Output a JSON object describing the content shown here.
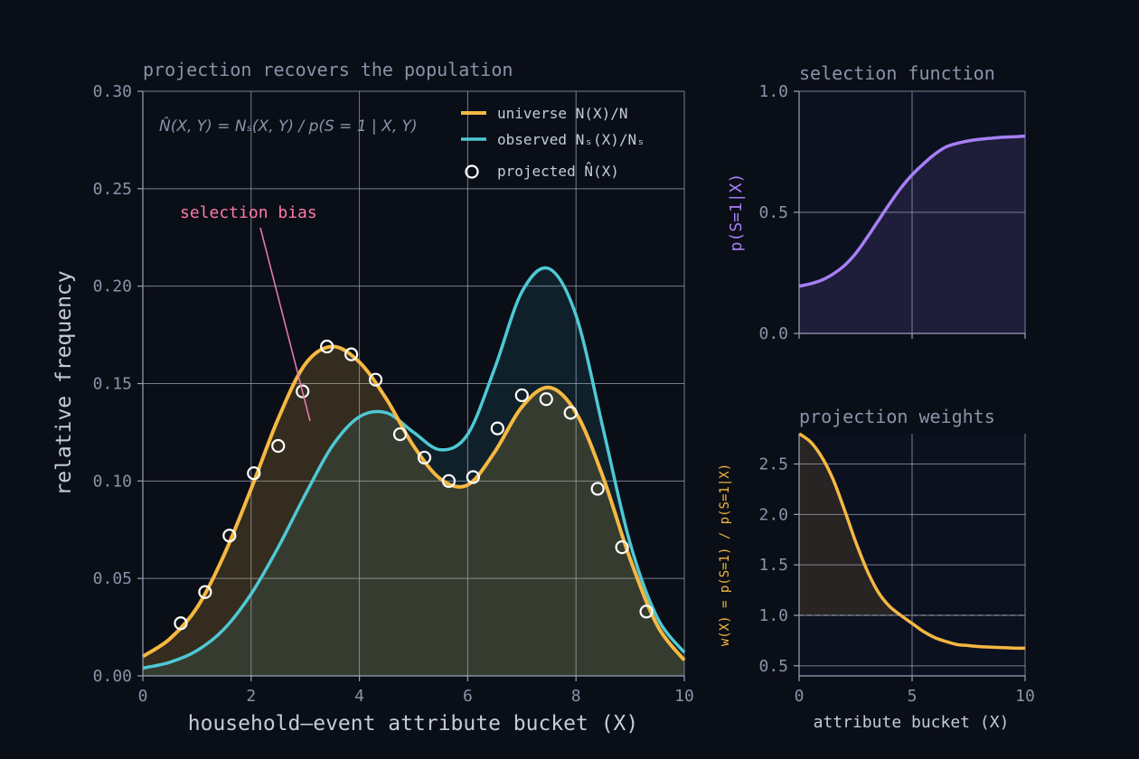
{
  "chart_data": [
    {
      "type": "line",
      "title": "projection recovers the population",
      "xlabel": "household–event attribute bucket  (X)",
      "ylabel": "relative frequency",
      "xlim": [
        0,
        10
      ],
      "ylim": [
        0,
        0.3
      ],
      "xticks": [
        "0",
        "2",
        "4",
        "6",
        "8",
        "10"
      ],
      "yticks": [
        "0.00",
        "0.05",
        "0.10",
        "0.15",
        "0.20",
        "0.25",
        "0.30"
      ],
      "grid": true,
      "legend_position": "top-right",
      "formula_annotation": "N̂(X, Y) = N_S(X, Y) / p(S = 1 | X, Y)",
      "annotation": {
        "text": "selection bias",
        "points_to_x": 3.1
      },
      "series": [
        {
          "name": "universe  N(X)/N",
          "kind": "line",
          "color": "#f5b841",
          "x": [
            0,
            0.5,
            1,
            1.5,
            2,
            2.5,
            3,
            3.5,
            4,
            4.5,
            5,
            5.5,
            6,
            6.5,
            7,
            7.5,
            8,
            8.5,
            9,
            9.5,
            10
          ],
          "y": [
            0.01,
            0.019,
            0.035,
            0.062,
            0.096,
            0.132,
            0.16,
            0.169,
            0.161,
            0.142,
            0.118,
            0.101,
            0.098,
            0.115,
            0.138,
            0.148,
            0.135,
            0.102,
            0.06,
            0.026,
            0.008
          ]
        },
        {
          "name": "observed  Nₛ(X)/Nₛ",
          "kind": "line",
          "color": "#4ec9d4",
          "x": [
            0,
            0.5,
            1,
            1.5,
            2,
            2.5,
            3,
            3.5,
            4,
            4.5,
            5,
            5.5,
            6,
            6.5,
            7,
            7.5,
            8,
            8.5,
            9,
            9.5,
            10
          ],
          "y": [
            0.004,
            0.007,
            0.013,
            0.024,
            0.042,
            0.066,
            0.093,
            0.118,
            0.133,
            0.135,
            0.125,
            0.116,
            0.124,
            0.158,
            0.197,
            0.209,
            0.185,
            0.127,
            0.068,
            0.03,
            0.012
          ]
        },
        {
          "name": "projected  N̂(X)",
          "kind": "scatter",
          "color": "#ffffff",
          "x": [
            0.7,
            1.15,
            1.6,
            2.05,
            2.5,
            2.95,
            3.4,
            3.85,
            4.3,
            4.75,
            5.2,
            5.65,
            6.1,
            6.55,
            7.0,
            7.45,
            7.9,
            8.4,
            8.85,
            9.3
          ],
          "y": [
            0.027,
            0.043,
            0.072,
            0.104,
            0.118,
            0.146,
            0.169,
            0.165,
            0.152,
            0.124,
            0.112,
            0.1,
            0.102,
            0.127,
            0.144,
            0.142,
            0.135,
            0.096,
            0.066,
            0.033
          ]
        }
      ]
    },
    {
      "type": "area",
      "title": "selection function",
      "xlabel": "",
      "ylabel": "p(S=1|X)",
      "xlim": [
        0,
        10
      ],
      "ylim": [
        0,
        1
      ],
      "xticks": [
        "",
        "",
        ""
      ],
      "yticks": [
        "0.0",
        "0.5",
        "1.0"
      ],
      "grid": true,
      "series": [
        {
          "name": "",
          "color": "#a77ff5",
          "x": [
            0,
            0.5,
            1,
            1.5,
            2,
            2.5,
            3,
            3.5,
            4,
            4.5,
            5,
            5.5,
            6,
            6.5,
            7,
            7.5,
            8,
            8.5,
            9,
            9.5,
            10
          ],
          "y": [
            0.195,
            0.205,
            0.22,
            0.245,
            0.28,
            0.33,
            0.395,
            0.465,
            0.535,
            0.6,
            0.655,
            0.7,
            0.74,
            0.77,
            0.785,
            0.795,
            0.802,
            0.806,
            0.81,
            0.812,
            0.815
          ]
        }
      ]
    },
    {
      "type": "area",
      "title": "projection weights",
      "xlabel": "attribute bucket  (X)",
      "ylabel": "w(X) = p(S=1) / p(S=1|X)",
      "xlim": [
        0,
        10
      ],
      "ylim": [
        0.4,
        2.8
      ],
      "xticks": [
        "0",
        "5",
        "10"
      ],
      "yticks": [
        "0.5",
        "1.0",
        "1.5",
        "2.0",
        "2.5"
      ],
      "grid": true,
      "reference_line": 1.0,
      "series": [
        {
          "name": "",
          "color": "#f5b841",
          "x": [
            0,
            0.5,
            1,
            1.5,
            2,
            2.5,
            3,
            3.5,
            4,
            4.5,
            5,
            5.5,
            6,
            6.5,
            7,
            7.5,
            8,
            8.5,
            9,
            9.5,
            10
          ],
          "y": [
            2.8,
            2.72,
            2.57,
            2.35,
            2.05,
            1.73,
            1.45,
            1.23,
            1.09,
            1.0,
            0.92,
            0.84,
            0.78,
            0.74,
            0.71,
            0.7,
            0.69,
            0.685,
            0.68,
            0.675,
            0.675
          ]
        }
      ]
    }
  ],
  "labels": {
    "main_title": "projection recovers the population",
    "main_xlabel": "household–event attribute bucket  (X)",
    "main_ylabel": "relative frequency",
    "legend_universe": "universe  N(X)/N",
    "legend_observed": "observed  Nₛ(X)/Nₛ",
    "legend_projected": "projected  N̂(X)",
    "formula": "N̂(X, Y) = Nₛ(X, Y) / p(S = 1 | X, Y)",
    "annotation": "selection bias",
    "sel_title": "selection function",
    "sel_ylabel": "p(S=1|X)",
    "w_title": "projection weights",
    "w_xlabel": "attribute bucket  (X)",
    "w_ylabel": "w(X) = p(S=1) / p(S=1|X)"
  },
  "colors": {
    "background": "#0a0e17",
    "panel_bg": "#0c1120",
    "grid": "#9aa3b8",
    "universe": "#f5b841",
    "observed": "#4ec9d4",
    "selection": "#a77ff5",
    "annotation": "#ff7aa8",
    "marker": "#ffffff"
  }
}
